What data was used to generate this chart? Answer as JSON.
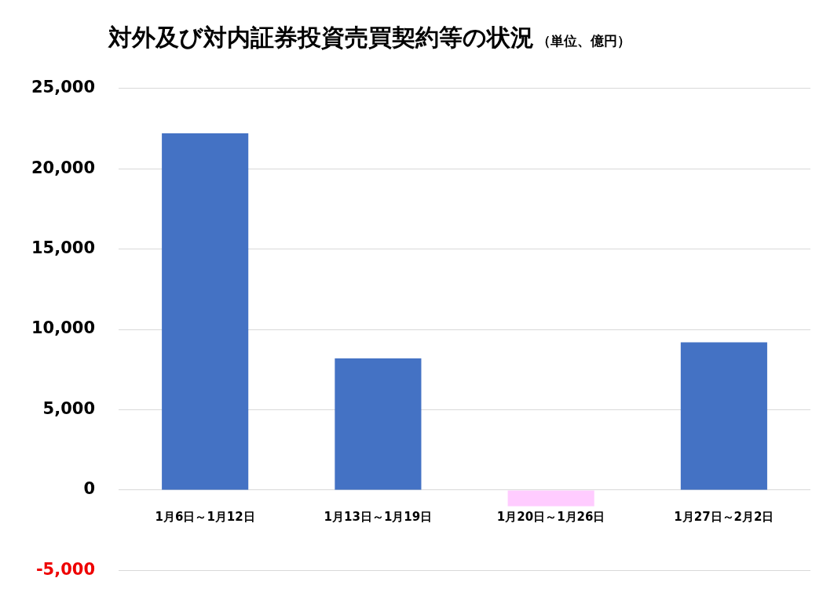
{
  "chart_data": {
    "type": "bar",
    "title": "対外及び対内証券投資売買契約等の状況",
    "subtitle": "（単位、億円）",
    "categories": [
      "1月6日～1月12日",
      "1月13日～1月19日",
      "1月20日～1月26日",
      "1月27日～2月2日"
    ],
    "values": [
      22200,
      8200,
      -1000,
      9200
    ],
    "colors": [
      "#4472c4",
      "#4472c4",
      "#ffccff",
      "#4472c4"
    ],
    "ylim": [
      -5000,
      25000
    ],
    "yticks": [
      {
        "value": -5000,
        "label": "-5,000"
      },
      0,
      {
        "value": 5000,
        "label": "5,000"
      },
      {
        "value": 10000,
        "label": "10,000"
      },
      {
        "value": 15000,
        "label": "15,000"
      },
      {
        "value": 20000,
        "label": "20,000"
      },
      {
        "value": 25000,
        "label": "25,000"
      }
    ],
    "grid": "y",
    "legend": false
  }
}
